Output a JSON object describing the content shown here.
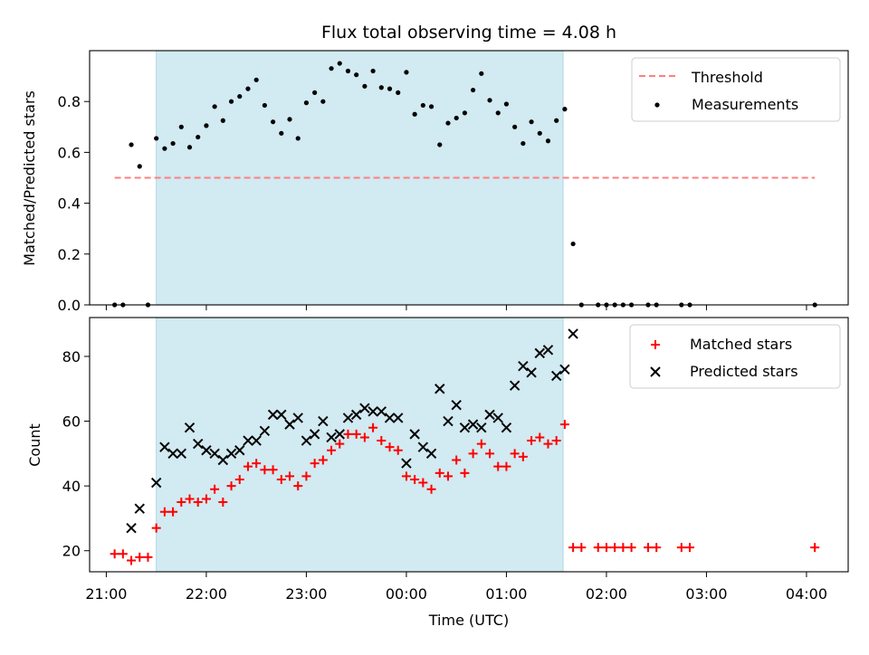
{
  "chart_data": [
    {
      "type": "scatter",
      "panel": "top",
      "title": "Flux total observing time = 4.08 h",
      "xlabel": "",
      "ylabel": "Matched/Predicted stars",
      "xlim": [
        "20:50",
        "04:25"
      ],
      "ylim": [
        0,
        1.0
      ],
      "yticks": [
        "0.0",
        "0.2",
        "0.4",
        "0.6",
        "0.8"
      ],
      "shaded_region": [
        "21:30",
        "01:34"
      ],
      "shade_color": "#add8e6",
      "grid": false,
      "legend_position": "top-right",
      "legend": [
        "Threshold",
        "Measurements"
      ],
      "series": [
        {
          "name": "Threshold",
          "kind": "dashed-line",
          "color": "#ff7f7f",
          "x": [
            "21:05",
            "04:05"
          ],
          "y": [
            0.5,
            0.5
          ]
        },
        {
          "name": "Measurements",
          "kind": "points",
          "color": "#000000",
          "x": [
            "21:05",
            "21:10",
            "21:15",
            "21:20",
            "21:25",
            "21:30",
            "21:35",
            "21:40",
            "21:45",
            "21:50",
            "21:55",
            "22:00",
            "22:05",
            "22:10",
            "22:15",
            "22:20",
            "22:25",
            "22:30",
            "22:35",
            "22:40",
            "22:45",
            "22:50",
            "22:55",
            "23:00",
            "23:05",
            "23:10",
            "23:15",
            "23:20",
            "23:25",
            "23:30",
            "23:35",
            "23:40",
            "23:45",
            "23:50",
            "23:55",
            "00:00",
            "00:05",
            "00:10",
            "00:15",
            "00:20",
            "00:25",
            "00:30",
            "00:35",
            "00:40",
            "00:45",
            "00:50",
            "00:55",
            "01:00",
            "01:05",
            "01:10",
            "01:15",
            "01:20",
            "01:25",
            "01:30",
            "01:35",
            "01:40",
            "01:45",
            "01:55",
            "02:00",
            "02:05",
            "02:10",
            "02:15",
            "02:25",
            "02:30",
            "02:45",
            "02:50",
            "04:05"
          ],
          "y": [
            0,
            0,
            0.63,
            0.545,
            0,
            0.655,
            0.615,
            0.635,
            0.7,
            0.62,
            0.66,
            0.705,
            0.78,
            0.725,
            0.8,
            0.82,
            0.85,
            0.885,
            0.785,
            0.72,
            0.675,
            0.73,
            0.655,
            0.795,
            0.835,
            0.8,
            0.93,
            0.95,
            0.92,
            0.905,
            0.86,
            0.92,
            0.855,
            0.85,
            0.835,
            0.915,
            0.75,
            0.785,
            0.78,
            0.63,
            0.715,
            0.735,
            0.755,
            0.845,
            0.91,
            0.805,
            0.755,
            0.79,
            0.7,
            0.635,
            0.72,
            0.675,
            0.645,
            0.725,
            0.77,
            0.24,
            0,
            0,
            0,
            0,
            0,
            0,
            0,
            0,
            0,
            0,
            0
          ]
        }
      ]
    },
    {
      "type": "scatter",
      "panel": "bottom",
      "title": "",
      "xlabel": "Time (UTC)",
      "ylabel": "Count",
      "xlim": [
        "20:50",
        "04:25"
      ],
      "xticks": [
        "21:00",
        "22:00",
        "23:00",
        "00:00",
        "01:00",
        "02:00",
        "03:00",
        "04:00"
      ],
      "ylim": [
        13.5,
        92
      ],
      "yticks": [
        "20",
        "40",
        "60",
        "80"
      ],
      "shaded_region": [
        "21:30",
        "01:34"
      ],
      "shade_color": "#add8e6",
      "grid": false,
      "legend_position": "top-right",
      "legend": [
        "Matched stars",
        "Predicted stars"
      ],
      "series": [
        {
          "name": "Matched stars",
          "kind": "plus",
          "color": "#ff0000",
          "x": [
            "21:05",
            "21:10",
            "21:15",
            "21:20",
            "21:25",
            "21:30",
            "21:35",
            "21:40",
            "21:45",
            "21:50",
            "21:55",
            "22:00",
            "22:05",
            "22:10",
            "22:15",
            "22:20",
            "22:25",
            "22:30",
            "22:35",
            "22:40",
            "22:45",
            "22:50",
            "22:55",
            "23:00",
            "23:05",
            "23:10",
            "23:15",
            "23:20",
            "23:25",
            "23:30",
            "23:35",
            "23:40",
            "23:45",
            "23:50",
            "23:55",
            "00:00",
            "00:05",
            "00:10",
            "00:15",
            "00:20",
            "00:25",
            "00:30",
            "00:35",
            "00:40",
            "00:45",
            "00:50",
            "00:55",
            "01:00",
            "01:05",
            "01:10",
            "01:15",
            "01:20",
            "01:25",
            "01:30",
            "01:35",
            "01:40",
            "01:45",
            "01:55",
            "02:00",
            "02:05",
            "02:10",
            "02:15",
            "02:25",
            "02:30",
            "02:45",
            "02:50",
            "04:05"
          ],
          "y": [
            19,
            19,
            17,
            18,
            18,
            27,
            32,
            32,
            35,
            36,
            35,
            36,
            39,
            35,
            40,
            42,
            46,
            47,
            45,
            45,
            42,
            43,
            40,
            43,
            47,
            48,
            51,
            53,
            56,
            56,
            55,
            58,
            54,
            52,
            51,
            43,
            42,
            41,
            39,
            44,
            43,
            48,
            44,
            50,
            53,
            50,
            46,
            46,
            50,
            49,
            54,
            55,
            53,
            54,
            59,
            21,
            21,
            21,
            21,
            21,
            21,
            21,
            21,
            21,
            21,
            21,
            21
          ]
        },
        {
          "name": "Predicted stars",
          "kind": "x",
          "color": "#000000",
          "x": [
            "21:15",
            "21:20",
            "21:30",
            "21:35",
            "21:40",
            "21:45",
            "21:50",
            "21:55",
            "22:00",
            "22:05",
            "22:10",
            "22:15",
            "22:20",
            "22:25",
            "22:30",
            "22:35",
            "22:40",
            "22:45",
            "22:50",
            "22:55",
            "23:00",
            "23:05",
            "23:10",
            "23:15",
            "23:20",
            "23:25",
            "23:30",
            "23:35",
            "23:40",
            "23:45",
            "23:50",
            "23:55",
            "00:00",
            "00:05",
            "00:10",
            "00:15",
            "00:20",
            "00:25",
            "00:30",
            "00:35",
            "00:40",
            "00:45",
            "00:50",
            "00:55",
            "01:00",
            "01:05",
            "01:10",
            "01:15",
            "01:20",
            "01:25",
            "01:30",
            "01:35",
            "01:40"
          ],
          "y": [
            27,
            33,
            41,
            52,
            50,
            50,
            58,
            53,
            51,
            50,
            48,
            50,
            51,
            54,
            54,
            57,
            62,
            62,
            59,
            61,
            54,
            56,
            60,
            55,
            56,
            61,
            62,
            64,
            63,
            63,
            61,
            61,
            47,
            56,
            52,
            50,
            70,
            60,
            65,
            58,
            59,
            58,
            62,
            61,
            58,
            71,
            77,
            75,
            81,
            82,
            74,
            76,
            87
          ]
        }
      ]
    }
  ]
}
